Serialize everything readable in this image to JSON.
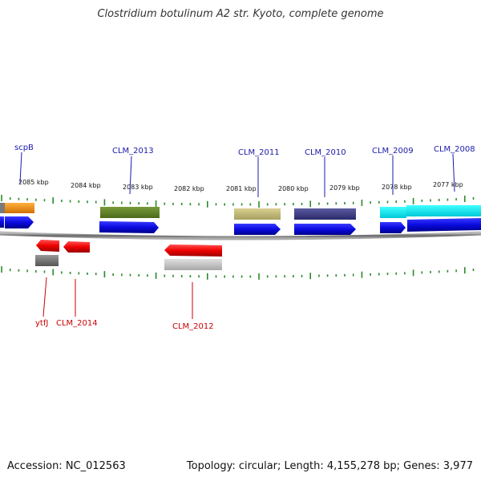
{
  "title": "Clostridium botulinum A2 str. Kyoto, complete genome",
  "accession": "Accession: NC_012563",
  "summary": "Topology: circular; Length: 4,155,278 bp; Genes: 3,977",
  "kbp_labels": [
    "2085 kbp",
    "2084 kbp",
    "2083 kbp",
    "2082 kbp",
    "2081 kbp",
    "2080 kbp",
    "2079 kbp",
    "2078 kbp",
    "2077 kbp"
  ],
  "gene_labels_top": [
    "scpB",
    "CLM_2013",
    "CLM_2011",
    "CLM_2010",
    "CLM_2009",
    "CLM_2008"
  ],
  "gene_labels_bottom": [
    "ytfJ",
    "CLM_2014",
    "CLM_2012"
  ],
  "colors": {
    "forward_label": "#1a1aaa",
    "reverse_label": "#cc0000",
    "cds_forward": "#1010e0",
    "cds_reverse": "#ee1010",
    "tick": "#2a8a2a",
    "backbone": "#888888"
  }
}
